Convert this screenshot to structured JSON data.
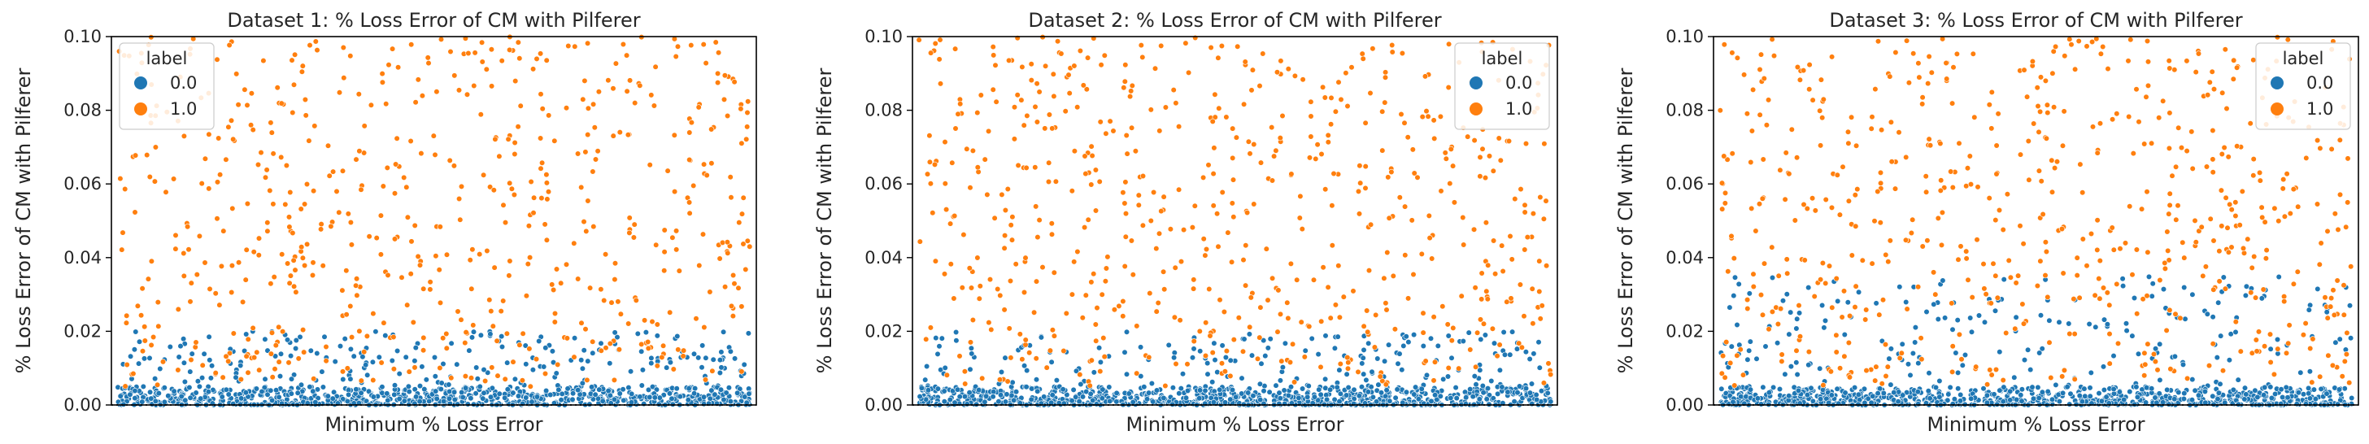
{
  "colors": {
    "label_0": "#1f77b4",
    "label_1": "#ff7f0e",
    "axis": "#000000",
    "zero_line": "#333333"
  },
  "chart_data": [
    {
      "type": "scatter",
      "title": "Dataset 1: % Loss Error of CM with Pilferer",
      "xlabel": "Minimum % Loss Error",
      "ylabel": "% Loss Error of CM with Pilferer",
      "ylim": [
        0.0,
        0.1
      ],
      "yticks": [
        "0.00",
        "0.02",
        "0.04",
        "0.06",
        "0.08",
        "0.10"
      ],
      "grid": false,
      "x_ticks_shown": false,
      "zero_reference_line": "dotted",
      "legend": {
        "title": "label",
        "position": "top-left",
        "entries": [
          "0.0",
          "1.0"
        ]
      },
      "series": [
        {
          "name": "0.0",
          "n_points": 1000,
          "y_range": [
            0.0,
            0.02
          ],
          "concentration": "mostly below 0.005"
        },
        {
          "name": "1.0",
          "n_points": 600,
          "y_range": [
            0.005,
            0.1
          ],
          "concentration": "spread evenly"
        }
      ],
      "seed": 11
    },
    {
      "type": "scatter",
      "title": "Dataset 2: % Loss Error of CM with Pilferer",
      "xlabel": "Minimum % Loss Error",
      "ylabel": "% Loss Error of CM with Pilferer",
      "ylim": [
        0.0,
        0.1
      ],
      "yticks": [
        "0.00",
        "0.02",
        "0.04",
        "0.06",
        "0.08",
        "0.10"
      ],
      "grid": false,
      "x_ticks_shown": false,
      "zero_reference_line": "dotted",
      "legend": {
        "title": "label",
        "position": "top-right",
        "entries": [
          "0.0",
          "1.0"
        ]
      },
      "series": [
        {
          "name": "0.0",
          "n_points": 1000,
          "y_range": [
            0.0,
            0.02
          ],
          "concentration": "mostly below 0.005"
        },
        {
          "name": "1.0",
          "n_points": 600,
          "y_range": [
            0.005,
            0.1
          ],
          "concentration": "spread evenly"
        }
      ],
      "seed": 23
    },
    {
      "type": "scatter",
      "title": "Dataset 3: % Loss Error of CM with Pilferer",
      "xlabel": "Minimum % Loss Error",
      "ylabel": "% Loss Error of CM with Pilferer",
      "ylim": [
        0.0,
        0.1
      ],
      "yticks": [
        "0.00",
        "0.02",
        "0.04",
        "0.06",
        "0.08",
        "0.10"
      ],
      "grid": false,
      "x_ticks_shown": false,
      "zero_reference_line": "dotted",
      "legend": {
        "title": "label",
        "position": "top-right",
        "entries": [
          "0.0",
          "1.0"
        ]
      },
      "series": [
        {
          "name": "0.0",
          "n_points": 1000,
          "y_range": [
            0.0,
            0.035
          ],
          "concentration": "mostly below 0.006"
        },
        {
          "name": "1.0",
          "n_points": 600,
          "y_range": [
            0.005,
            0.1
          ],
          "concentration": "spread evenly"
        }
      ],
      "seed": 37
    }
  ]
}
